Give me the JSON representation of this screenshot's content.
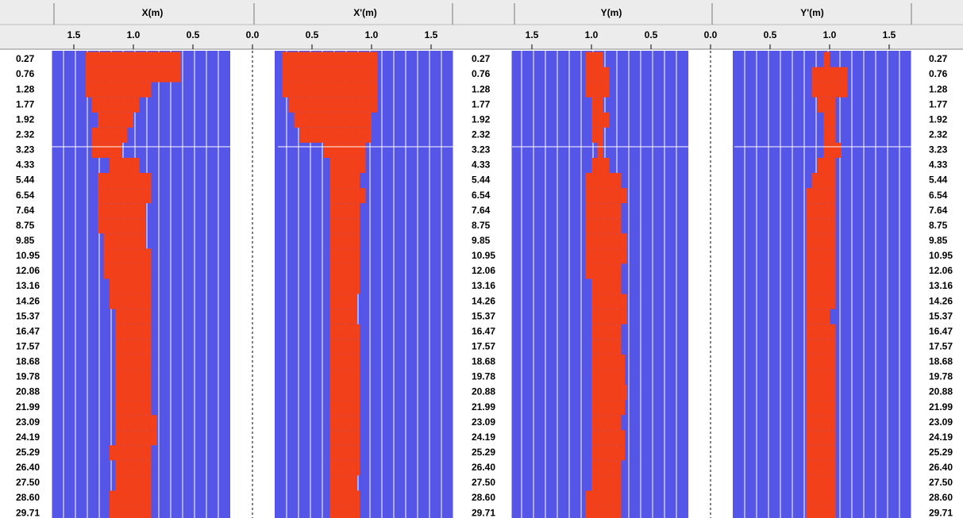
{
  "depths": [
    "0.27",
    "0.76",
    "1.28",
    "1.77",
    "1.92",
    "2.32",
    "3.23",
    "4.33",
    "5.44",
    "6.54",
    "7.64",
    "8.75",
    "9.85",
    "10.95",
    "12.06",
    "13.16",
    "14.26",
    "15.37",
    "16.47",
    "17.57",
    "18.68",
    "19.78",
    "20.88",
    "21.99",
    "23.09",
    "24.19",
    "25.29",
    "26.40",
    "27.50",
    "28.60",
    "29.71"
  ],
  "chart_data": [
    {
      "type": "range-bar",
      "title": "X(m)",
      "color": "#f2401a",
      "xlim": [
        0,
        1.69
      ],
      "xticks": [
        1.5,
        {
          "value": 1,
          "label": "1.0"
        },
        0.5,
        {
          "value": 0,
          "label": "0.0"
        }
      ],
      "values": [
        [
          1.4,
          0.6
        ],
        [
          1.4,
          0.6
        ],
        [
          1.4,
          0.85
        ],
        [
          1.35,
          0.95
        ],
        [
          1.3,
          1.0
        ],
        [
          1.35,
          1.05
        ],
        [
          1.35,
          1.1
        ],
        [
          1.2,
          0.95
        ],
        [
          1.3,
          0.85
        ],
        [
          1.3,
          0.85
        ],
        [
          1.3,
          0.9
        ],
        [
          1.3,
          0.9
        ],
        [
          1.25,
          0.9
        ],
        [
          1.25,
          0.85
        ],
        [
          1.25,
          0.85
        ],
        [
          1.2,
          0.85
        ],
        [
          1.2,
          0.85
        ],
        [
          1.15,
          0.85
        ],
        [
          1.15,
          0.85
        ],
        [
          1.15,
          0.85
        ],
        [
          1.15,
          0.85
        ],
        [
          1.15,
          0.85
        ],
        [
          1.15,
          0.85
        ],
        [
          1.15,
          0.85
        ],
        [
          1.15,
          0.8
        ],
        [
          1.15,
          0.8
        ],
        [
          1.2,
          0.85
        ],
        [
          1.15,
          0.85
        ],
        [
          1.15,
          0.85
        ],
        [
          1.2,
          0.85
        ],
        [
          1.2,
          0.85
        ]
      ]
    },
    {
      "type": "range-bar",
      "title": "X'(m)",
      "color": "#f2401a",
      "xlim": [
        0,
        1.69
      ],
      "xticks": [
        0.5,
        {
          "value": 1,
          "label": "1.0"
        },
        1.5
      ],
      "values": [
        [
          0.25,
          1.05
        ],
        [
          0.25,
          1.05
        ],
        [
          0.25,
          1.05
        ],
        [
          0.3,
          1.05
        ],
        [
          0.35,
          1.0
        ],
        [
          0.4,
          1.0
        ],
        [
          0.6,
          0.95
        ],
        [
          0.65,
          0.95
        ],
        [
          0.65,
          0.9
        ],
        [
          0.65,
          0.95
        ],
        [
          0.65,
          0.9
        ],
        [
          0.65,
          0.9
        ],
        [
          0.65,
          0.9
        ],
        [
          0.65,
          0.9
        ],
        [
          0.65,
          0.9
        ],
        [
          0.65,
          0.9
        ],
        [
          0.65,
          0.88
        ],
        [
          0.65,
          0.88
        ],
        [
          0.65,
          0.9
        ],
        [
          0.65,
          0.9
        ],
        [
          0.65,
          0.9
        ],
        [
          0.65,
          0.9
        ],
        [
          0.65,
          0.9
        ],
        [
          0.65,
          0.9
        ],
        [
          0.65,
          0.9
        ],
        [
          0.65,
          0.9
        ],
        [
          0.65,
          0.9
        ],
        [
          0.65,
          0.9
        ],
        [
          0.65,
          0.88
        ],
        [
          0.65,
          0.9
        ],
        [
          0.65,
          0.9
        ]
      ]
    },
    {
      "type": "range-bar",
      "title": "Y(m)",
      "color": "#f2401a",
      "xlim": [
        0,
        1.67
      ],
      "xticks": [
        1.5,
        {
          "value": 1,
          "label": "1.0"
        },
        0.5,
        {
          "value": 0,
          "label": "0.0"
        }
      ],
      "values": [
        [
          1.05,
          0.9
        ],
        [
          1.05,
          0.85
        ],
        [
          1.05,
          0.85
        ],
        [
          1.0,
          0.9
        ],
        [
          1.0,
          0.85
        ],
        [
          1.0,
          0.9
        ],
        [
          0.95,
          0.9
        ],
        [
          1.0,
          0.85
        ],
        [
          1.05,
          0.75
        ],
        [
          1.05,
          0.7
        ],
        [
          1.05,
          0.75
        ],
        [
          1.05,
          0.75
        ],
        [
          1.05,
          0.7
        ],
        [
          1.05,
          0.7
        ],
        [
          1.05,
          0.75
        ],
        [
          1.0,
          0.75
        ],
        [
          1.0,
          0.7
        ],
        [
          1.0,
          0.7
        ],
        [
          1.0,
          0.75
        ],
        [
          1.0,
          0.75
        ],
        [
          1.0,
          0.72
        ],
        [
          1.0,
          0.72
        ],
        [
          1.0,
          0.7
        ],
        [
          1.0,
          0.72
        ],
        [
          1.0,
          0.75
        ],
        [
          1.0,
          0.72
        ],
        [
          1.0,
          0.72
        ],
        [
          1.0,
          0.75
        ],
        [
          1.0,
          0.75
        ],
        [
          1.05,
          0.75
        ],
        [
          1.05,
          0.75
        ]
      ]
    },
    {
      "type": "range-bar",
      "title": "Y'(m)",
      "color": "#f2401a",
      "xlim": [
        0,
        1.69
      ],
      "xticks": [
        0.5,
        {
          "value": 1,
          "label": "1.0"
        },
        1.5
      ],
      "values": [
        [
          0.95,
          1.0
        ],
        [
          0.85,
          1.15
        ],
        [
          0.85,
          1.15
        ],
        [
          0.9,
          1.05
        ],
        [
          0.95,
          1.05
        ],
        [
          0.95,
          1.05
        ],
        [
          0.95,
          1.1
        ],
        [
          0.9,
          1.05
        ],
        [
          0.85,
          1.05
        ],
        [
          0.8,
          1.05
        ],
        [
          0.8,
          1.05
        ],
        [
          0.8,
          1.05
        ],
        [
          0.8,
          1.05
        ],
        [
          0.8,
          1.05
        ],
        [
          0.8,
          1.05
        ],
        [
          0.8,
          1.05
        ],
        [
          0.8,
          1.05
        ],
        [
          0.8,
          1.0
        ],
        [
          0.8,
          1.05
        ],
        [
          0.8,
          1.05
        ],
        [
          0.8,
          1.05
        ],
        [
          0.8,
          1.05
        ],
        [
          0.8,
          1.05
        ],
        [
          0.8,
          1.05
        ],
        [
          0.8,
          1.05
        ],
        [
          0.8,
          1.05
        ],
        [
          0.8,
          1.05
        ],
        [
          0.8,
          1.05
        ],
        [
          0.8,
          1.05
        ],
        [
          0.8,
          1.05
        ],
        [
          0.8,
          1.05
        ]
      ]
    }
  ]
}
